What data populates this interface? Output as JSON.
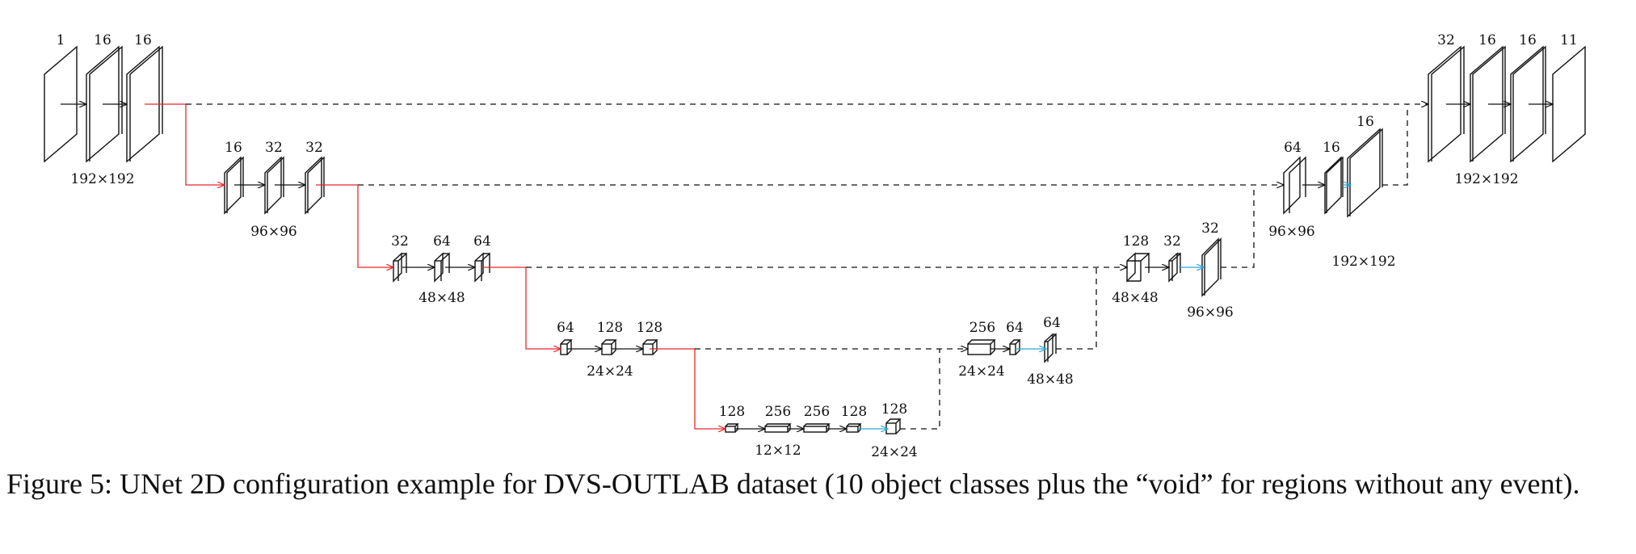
{
  "diagram": {
    "level1": {
      "encoder": {
        "channels": [
          "1",
          "16",
          "16"
        ],
        "size": "192×192"
      },
      "decoder": {
        "channels": [
          "32",
          "16",
          "16",
          "11"
        ],
        "size": "192×192"
      }
    },
    "level2": {
      "encoder": {
        "channels": [
          "16",
          "32",
          "32"
        ],
        "size": "96×96"
      },
      "decoder": {
        "channels": [
          "64",
          "16"
        ],
        "size": "96×96"
      },
      "upsample": {
        "channel": "16",
        "size": "192×192"
      }
    },
    "level3": {
      "encoder": {
        "channels": [
          "32",
          "64",
          "64"
        ],
        "size": "48×48"
      },
      "decoder": {
        "channels": [
          "128",
          "32"
        ],
        "size": "48×48"
      },
      "upsample": {
        "channel": "32",
        "size": "96×96"
      }
    },
    "level4": {
      "encoder": {
        "channels": [
          "64",
          "128",
          "128"
        ],
        "size": "24×24"
      },
      "decoder": {
        "channels": [
          "256",
          "64"
        ],
        "size": "24×24"
      },
      "upsample": {
        "channel": "64",
        "size": "48×48"
      }
    },
    "level5": {
      "bottleneck": {
        "channels": [
          "128",
          "256",
          "256",
          "128"
        ],
        "size": "12×12"
      },
      "upsample": {
        "channel": "128",
        "size": "24×24"
      }
    },
    "colors": {
      "downsample": "#e8282b",
      "upsample": "#2aa7d6",
      "skip": "#111111",
      "block": "#111111"
    }
  },
  "caption": "Figure 5: UNet 2D configuration example for DVS-OUTLAB dataset (10 object classes plus the “void” for regions without any event)."
}
